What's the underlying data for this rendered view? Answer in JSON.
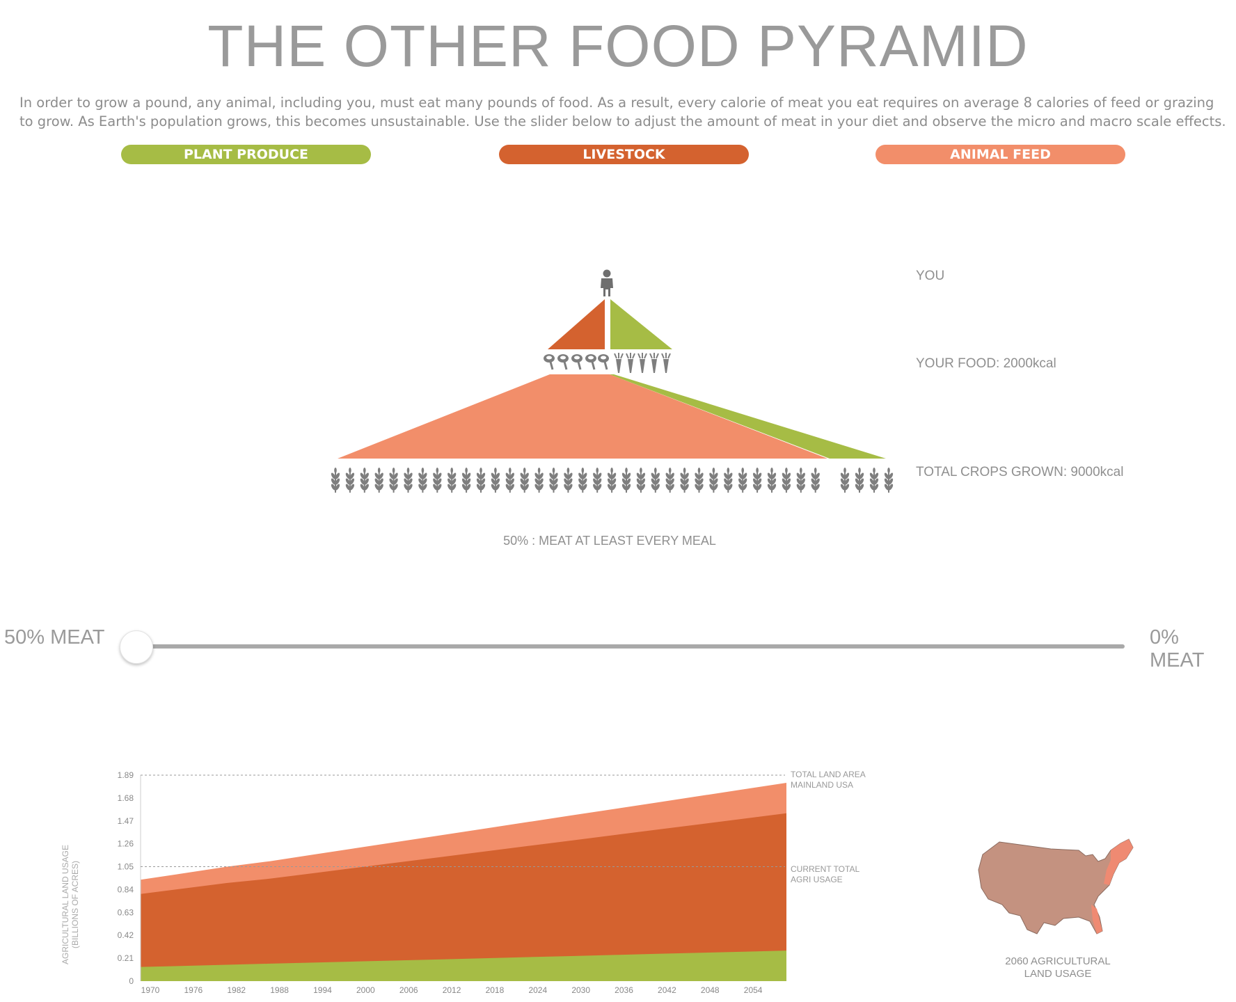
{
  "header": {
    "title": "THE OTHER FOOD PYRAMID",
    "intro": "In order to grow a pound, any animal, including you, must eat many pounds of food. As a result, every calorie of meat you eat requires on average 8 calories of feed or grazing to grow. As Earth's population grows, this becomes unsustainable. Use the slider below to adjust the amount of meat in your diet and observe the micro and macro scale effects."
  },
  "legend": [
    {
      "label": "PLANT PRODUCE",
      "color": "#a6bc45"
    },
    {
      "label": "LIVESTOCK",
      "color": "#d4622f"
    },
    {
      "label": "ANIMAL FEED",
      "color": "#f28e6a"
    }
  ],
  "pyramid": {
    "you_label": "YOU",
    "food_label": "YOUR FOOD: 2000kcal",
    "crops_label": "TOTAL CROPS GROWN: 9000kcal",
    "meat_icon_count": 5,
    "plant_icon_count": 5,
    "feed_crop_icon_count": 34,
    "plant_crop_icon_count": 4,
    "diet_caption": "50% : MEAT AT LEAST EVERY MEAL",
    "icons": {
      "person": "person-icon",
      "meat": "meat-drumstick-icon",
      "plant": "carrot-icon",
      "crop": "wheat-icon"
    }
  },
  "slider": {
    "left_label": "50% MEAT",
    "right_label": "0% MEAT",
    "value_percent_meat": 50
  },
  "chart_data": {
    "type": "area",
    "ylabel_line1": "AGRICULTURAL LAND USAGE",
    "ylabel_line2": "(BILLIONS OF ACRES)",
    "yticks": [
      "0",
      "0.21",
      "0.42",
      "0.63",
      "0.84",
      "1.05",
      "1.26",
      "1.47",
      "1.68",
      "1.89"
    ],
    "ylim": [
      0,
      1.89
    ],
    "xticks": [
      "1970",
      "1976",
      "1982",
      "1988",
      "1994",
      "2000",
      "2006",
      "2012",
      "2018",
      "2024",
      "2030",
      "2036",
      "2042",
      "2048",
      "2054"
    ],
    "x": [
      1969,
      1975,
      1981,
      1987,
      1993,
      1999,
      2005,
      2011,
      2017,
      2023,
      2029,
      2035,
      2041,
      2047,
      2053,
      2059
    ],
    "series": [
      {
        "color": "#a6bc45",
        "values": [
          0.13,
          0.14,
          0.15,
          0.16,
          0.17,
          0.18,
          0.19,
          0.2,
          0.21,
          0.22,
          0.23,
          0.24,
          0.25,
          0.26,
          0.27,
          0.28
        ]
      },
      {
        "color": "#d4622f",
        "values": [
          0.8,
          0.85,
          0.9,
          0.94,
          0.99,
          1.04,
          1.09,
          1.14,
          1.19,
          1.24,
          1.29,
          1.34,
          1.39,
          1.44,
          1.49,
          1.54
        ]
      },
      {
        "color": "#f28e6a",
        "values": [
          0.93,
          0.99,
          1.05,
          1.1,
          1.16,
          1.22,
          1.28,
          1.34,
          1.4,
          1.46,
          1.52,
          1.58,
          1.64,
          1.7,
          1.76,
          1.82
        ]
      }
    ],
    "reference_lines": [
      {
        "value": 1.89,
        "label_line1": "TOTAL LAND AREA",
        "label_line2": "MAINLAND USA"
      },
      {
        "value": 1.05,
        "label_line1": "CURRENT TOTAL",
        "label_line2": "AGRI USAGE"
      }
    ],
    "grid": false
  },
  "map": {
    "caption_line1": "2060 AGRICULTURAL",
    "caption_line2": "LAND USAGE",
    "fill": "#c49280",
    "highlight": "#ef8a72"
  }
}
